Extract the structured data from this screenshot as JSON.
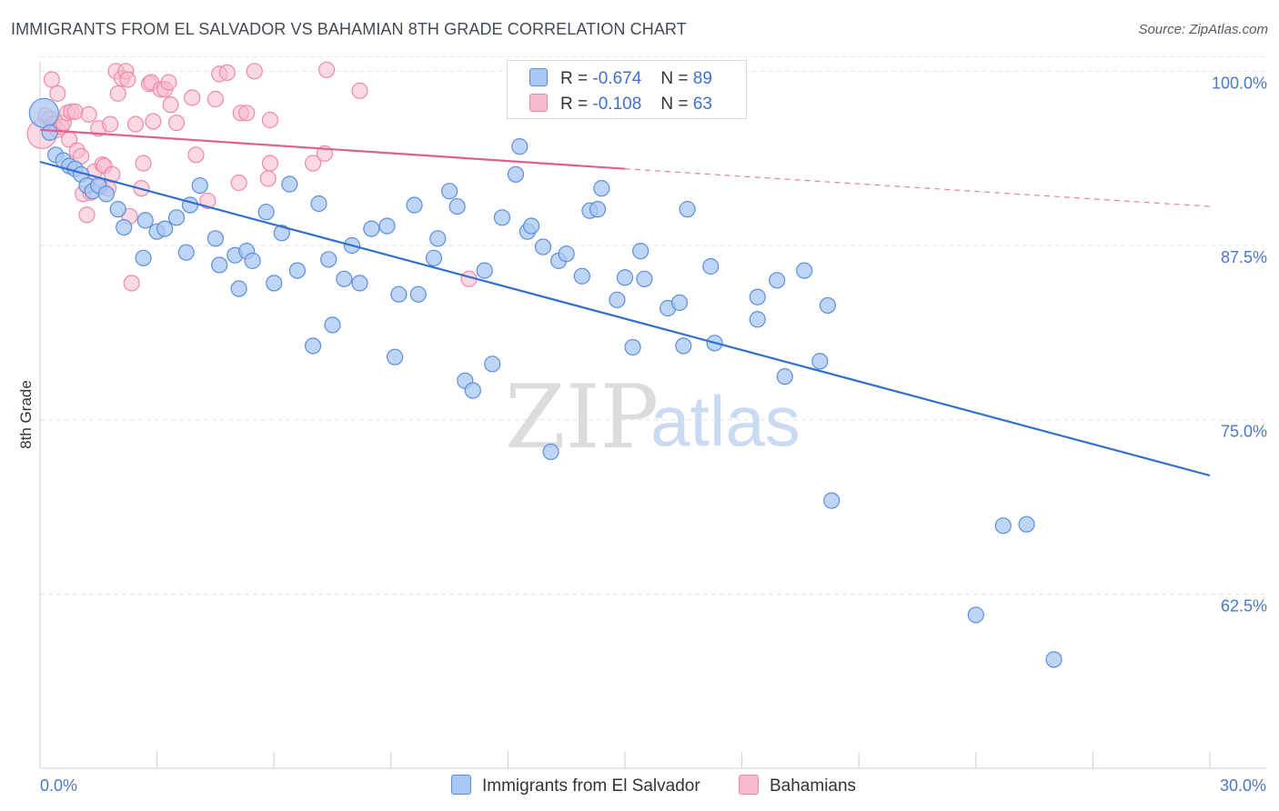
{
  "title": "IMMIGRANTS FROM EL SALVADOR VS BAHAMIAN 8TH GRADE CORRELATION CHART",
  "source": "Source: ZipAtlas.com",
  "watermark": {
    "zip": "ZIP",
    "atlas": "atlas"
  },
  "legend": {
    "r_label": "R =",
    "n_label": "N =",
    "rows": [
      {
        "r": "-0.674",
        "n": "89",
        "color": "#a9c7f3"
      },
      {
        "r": "-0.108",
        "n": "63",
        "color": "#f7b9cc"
      }
    ]
  },
  "chart_data": {
    "type": "scatter",
    "title": "IMMIGRANTS FROM EL SALVADOR VS BAHAMIAN 8TH GRADE CORRELATION CHART",
    "xlabel": "",
    "ylabel": "8th Grade",
    "xlim": [
      0,
      30
    ],
    "ylim": [
      50,
      102.5
    ],
    "x_ticks": [
      "0.0%",
      "30.0%"
    ],
    "y_ticks": [
      {
        "value": 100,
        "label": "100.0%"
      },
      {
        "value": 87.5,
        "label": "87.5%"
      },
      {
        "value": 75,
        "label": "75.0%"
      },
      {
        "value": 62.5,
        "label": "62.5%"
      }
    ],
    "grid": true,
    "legend_position": "bottom",
    "series": [
      {
        "name": "Immigrants from El Salvador",
        "color": "#5b8fdc",
        "fill": "#a9c7f3",
        "line_color": "#2f6fcf",
        "r": -0.674,
        "n": 89,
        "trend": {
          "x": [
            0,
            30
          ],
          "y": [
            93.5,
            71.0
          ]
        },
        "points": [
          [
            0.1,
            97.0
          ],
          [
            0.25,
            95.6
          ],
          [
            0.4,
            94.0
          ],
          [
            0.6,
            93.6
          ],
          [
            0.75,
            93.2
          ],
          [
            0.9,
            93.0
          ],
          [
            1.05,
            92.6
          ],
          [
            1.2,
            91.8
          ],
          [
            1.35,
            91.4
          ],
          [
            1.5,
            91.8
          ],
          [
            1.7,
            91.2
          ],
          [
            2.0,
            90.1
          ],
          [
            2.15,
            88.8
          ],
          [
            2.7,
            89.3
          ],
          [
            2.65,
            86.6
          ],
          [
            3.0,
            88.5
          ],
          [
            3.2,
            88.7
          ],
          [
            3.5,
            89.5
          ],
          [
            3.75,
            87.0
          ],
          [
            3.85,
            90.4
          ],
          [
            4.1,
            91.8
          ],
          [
            4.5,
            88.0
          ],
          [
            4.6,
            86.1
          ],
          [
            5.0,
            86.8
          ],
          [
            5.1,
            84.4
          ],
          [
            5.3,
            87.1
          ],
          [
            5.45,
            86.4
          ],
          [
            5.8,
            89.9
          ],
          [
            6.0,
            84.8
          ],
          [
            6.2,
            88.4
          ],
          [
            6.4,
            91.9
          ],
          [
            6.6,
            85.7
          ],
          [
            7.0,
            80.3
          ],
          [
            7.15,
            90.5
          ],
          [
            7.4,
            86.5
          ],
          [
            7.5,
            81.8
          ],
          [
            7.8,
            85.1
          ],
          [
            8.0,
            87.5
          ],
          [
            8.2,
            84.8
          ],
          [
            8.5,
            88.7
          ],
          [
            8.9,
            88.9
          ],
          [
            9.2,
            84.0
          ],
          [
            9.1,
            79.5
          ],
          [
            9.6,
            90.4
          ],
          [
            9.7,
            84.0
          ],
          [
            10.2,
            88.0
          ],
          [
            10.1,
            86.6
          ],
          [
            10.5,
            91.4
          ],
          [
            10.7,
            90.3
          ],
          [
            10.9,
            77.8
          ],
          [
            11.1,
            77.1
          ],
          [
            11.4,
            85.7
          ],
          [
            11.6,
            79.0
          ],
          [
            11.85,
            89.5
          ],
          [
            12.2,
            92.6
          ],
          [
            12.3,
            94.6
          ],
          [
            12.5,
            88.5
          ],
          [
            12.6,
            88.9
          ],
          [
            12.9,
            87.4
          ],
          [
            13.1,
            72.7
          ],
          [
            13.3,
            86.4
          ],
          [
            13.5,
            86.9
          ],
          [
            13.9,
            85.3
          ],
          [
            14.1,
            90.0
          ],
          [
            14.3,
            90.1
          ],
          [
            14.4,
            91.6
          ],
          [
            14.8,
            83.6
          ],
          [
            15.0,
            85.2
          ],
          [
            15.2,
            80.2
          ],
          [
            15.4,
            87.1
          ],
          [
            15.5,
            85.1
          ],
          [
            16.0,
            98.5
          ],
          [
            16.1,
            83.0
          ],
          [
            16.4,
            83.4
          ],
          [
            16.5,
            80.3
          ],
          [
            16.6,
            90.1
          ],
          [
            17.3,
            80.5
          ],
          [
            17.2,
            86.0
          ],
          [
            18.4,
            82.2
          ],
          [
            18.4,
            83.8
          ],
          [
            19.1,
            78.1
          ],
          [
            18.9,
            85.0
          ],
          [
            19.6,
            85.7
          ],
          [
            20.0,
            79.2
          ],
          [
            20.2,
            83.2
          ],
          [
            20.3,
            69.2
          ],
          [
            24.0,
            61.0
          ],
          [
            24.7,
            67.4
          ],
          [
            25.3,
            67.5
          ],
          [
            26.0,
            57.8
          ]
        ]
      },
      {
        "name": "Bahamians",
        "color": "#ee8aa8",
        "fill": "#f7b9cc",
        "line_color": "#e0608c",
        "r": -0.108,
        "n": 63,
        "trend": {
          "x": [
            0,
            15
          ],
          "y": [
            95.8,
            93.0
          ]
        },
        "trend_dashed": {
          "x": [
            15,
            30
          ],
          "y": [
            93.0,
            90.3
          ]
        },
        "points": [
          [
            0.05,
            95.5
          ],
          [
            0.15,
            96.8
          ],
          [
            0.25,
            96.6
          ],
          [
            0.35,
            96.2
          ],
          [
            0.45,
            95.8
          ],
          [
            0.55,
            96.0
          ],
          [
            0.6,
            96.3
          ],
          [
            0.7,
            97.0
          ],
          [
            0.75,
            95.1
          ],
          [
            0.8,
            97.1
          ],
          [
            0.9,
            97.1
          ],
          [
            0.95,
            94.3
          ],
          [
            1.05,
            93.9
          ],
          [
            1.1,
            91.2
          ],
          [
            1.2,
            89.7
          ],
          [
            1.25,
            96.9
          ],
          [
            1.3,
            91.3
          ],
          [
            1.4,
            92.8
          ],
          [
            1.5,
            95.9
          ],
          [
            1.55,
            91.7
          ],
          [
            1.6,
            93.3
          ],
          [
            1.65,
            93.2
          ],
          [
            1.75,
            91.6
          ],
          [
            1.8,
            96.2
          ],
          [
            1.85,
            92.6
          ],
          [
            1.95,
            100.0
          ],
          [
            2.0,
            98.4
          ],
          [
            2.1,
            99.5
          ],
          [
            2.2,
            100.0
          ],
          [
            2.25,
            99.4
          ],
          [
            2.3,
            89.6
          ],
          [
            2.35,
            84.8
          ],
          [
            2.45,
            96.2
          ],
          [
            2.6,
            91.6
          ],
          [
            2.65,
            93.4
          ],
          [
            2.8,
            99.1
          ],
          [
            2.85,
            99.2
          ],
          [
            2.9,
            96.4
          ],
          [
            3.1,
            98.7
          ],
          [
            3.2,
            98.7
          ],
          [
            3.3,
            99.2
          ],
          [
            3.35,
            97.6
          ],
          [
            3.5,
            96.3
          ],
          [
            3.9,
            98.1
          ],
          [
            4.0,
            94.0
          ],
          [
            4.3,
            90.7
          ],
          [
            4.5,
            98.0
          ],
          [
            4.6,
            99.8
          ],
          [
            4.8,
            99.9
          ],
          [
            5.1,
            92.0
          ],
          [
            5.15,
            97.0
          ],
          [
            5.3,
            97.0
          ],
          [
            5.5,
            100.0
          ],
          [
            5.85,
            92.3
          ],
          [
            5.9,
            93.4
          ],
          [
            5.9,
            96.5
          ],
          [
            7.0,
            93.4
          ],
          [
            7.3,
            94.1
          ],
          [
            7.35,
            100.1
          ],
          [
            8.2,
            98.6
          ],
          [
            11.0,
            85.1
          ],
          [
            0.3,
            99.4
          ],
          [
            0.45,
            98.4
          ]
        ]
      }
    ]
  }
}
